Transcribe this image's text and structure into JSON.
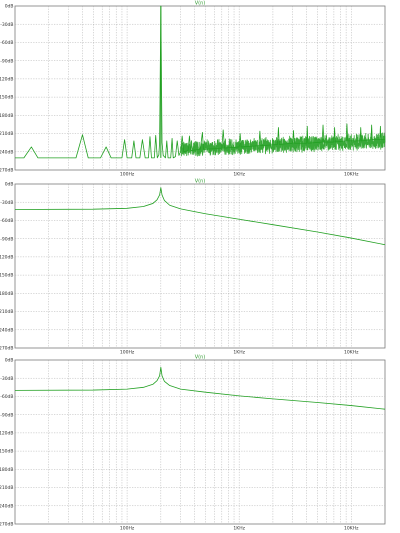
{
  "colors": {
    "trace": "#22a022",
    "grid": "#a8a8a8",
    "frame": "#7a7a7a",
    "title": "#2e9a2e"
  },
  "chart_data": [
    {
      "type": "line",
      "title": "V(n)",
      "xscale": "log",
      "xlim": [
        10,
        20000
      ],
      "grid": true,
      "xticks": [
        {
          "value": 100,
          "label": "100Hz"
        },
        {
          "value": 1000,
          "label": "1KHz"
        },
        {
          "value": 10000,
          "label": "10KHz"
        }
      ],
      "ylim": [
        -270,
        0
      ],
      "yticks": [
        {
          "value": 0,
          "label": "0dB"
        },
        {
          "value": -30,
          "label": "-30dB"
        },
        {
          "value": -60,
          "label": "-60dB"
        },
        {
          "value": -90,
          "label": "-90dB"
        },
        {
          "value": -120,
          "label": "-120dB"
        },
        {
          "value": -150,
          "label": "-150dB"
        },
        {
          "value": -180,
          "label": "-180dB"
        },
        {
          "value": -210,
          "label": "-210dB"
        },
        {
          "value": -240,
          "label": "-240dB"
        },
        {
          "value": -270,
          "label": "-270dB"
        }
      ],
      "series": [
        {
          "kind": "spectrum",
          "fundamental": {
            "x": 200,
            "y": 0
          },
          "noise_floor": {
            "from": [
              300,
              -235
            ],
            "to": [
              20000,
              -222
            ]
          },
          "points": [
            [
              10,
              -250
            ],
            [
              12,
              -250
            ],
            [
              14,
              -232
            ],
            [
              16,
              -250
            ],
            [
              35,
              -250
            ],
            [
              40,
              -212
            ],
            [
              45,
              -250
            ],
            [
              58,
              -250
            ],
            [
              65,
              -232
            ],
            [
              72,
              -250
            ],
            [
              90,
              -250
            ],
            [
              95,
              -220
            ],
            [
              100,
              -250
            ],
            [
              110,
              -250
            ],
            [
              115,
              -222
            ],
            [
              120,
              -250
            ],
            [
              130,
              -250
            ],
            [
              137,
              -220
            ],
            [
              145,
              -250
            ],
            [
              155,
              -250
            ],
            [
              160,
              -215
            ],
            [
              165,
              -250
            ],
            [
              175,
              -250
            ],
            [
              180,
              -213
            ],
            [
              186,
              -250
            ],
            [
              192,
              -245
            ],
            [
              195,
              -225
            ],
            [
              200,
              0
            ],
            [
              205,
              -225
            ],
            [
              210,
              -246
            ],
            [
              220,
              -250
            ],
            [
              226,
              -222
            ],
            [
              232,
              -250
            ],
            [
              245,
              -250
            ],
            [
              252,
              -218
            ],
            [
              258,
              -250
            ],
            [
              270,
              -248
            ],
            [
              280,
              -222
            ],
            [
              290,
              -246
            ],
            [
              300,
              -240
            ],
            [
              310,
              -214
            ],
            [
              320,
              -240
            ],
            [
              350,
              -238
            ],
            [
              360,
              -214
            ],
            [
              370,
              -238
            ],
            [
              450,
              -236
            ],
            [
              470,
              -208
            ],
            [
              480,
              -236
            ],
            [
              700,
              -234
            ],
            [
              720,
              -204
            ],
            [
              740,
              -234
            ],
            [
              1000,
              -232
            ],
            [
              1020,
              -210
            ],
            [
              1040,
              -232
            ],
            [
              1500,
              -230
            ],
            [
              1530,
              -206
            ],
            [
              1560,
              -230
            ],
            [
              2200,
              -228
            ],
            [
              2240,
              -200
            ],
            [
              2280,
              -228
            ],
            [
              3000,
              -226
            ],
            [
              3050,
              -205
            ],
            [
              3100,
              -226
            ],
            [
              4000,
              -226
            ],
            [
              4050,
              -198
            ],
            [
              4100,
              -226
            ],
            [
              5500,
              -224
            ],
            [
              5600,
              -196
            ],
            [
              5700,
              -224
            ],
            [
              7000,
              -224
            ],
            [
              7100,
              -200
            ],
            [
              7200,
              -224
            ],
            [
              9000,
              -222
            ],
            [
              9150,
              -194
            ],
            [
              9300,
              -222
            ],
            [
              12000,
              -222
            ],
            [
              12150,
              -200
            ],
            [
              12300,
              -222
            ],
            [
              15000,
              -220
            ],
            [
              15200,
              -196
            ],
            [
              15400,
              -220
            ],
            [
              18000,
              -220
            ],
            [
              18200,
              -198
            ],
            [
              18400,
              -220
            ],
            [
              20000,
              -220
            ]
          ]
        }
      ]
    },
    {
      "type": "line",
      "title": "V(n)",
      "xscale": "log",
      "xlim": [
        10,
        20000
      ],
      "grid": true,
      "xticks": [
        {
          "value": 100,
          "label": "100Hz"
        },
        {
          "value": 1000,
          "label": "1KHz"
        },
        {
          "value": 10000,
          "label": "10KHz"
        }
      ],
      "ylim": [
        -270,
        0
      ],
      "yticks": [
        {
          "value": 0,
          "label": "0dB"
        },
        {
          "value": -30,
          "label": "-30dB"
        },
        {
          "value": -60,
          "label": "-60dB"
        },
        {
          "value": -90,
          "label": "-90dB"
        },
        {
          "value": -120,
          "label": "-120dB"
        },
        {
          "value": -150,
          "label": "-150dB"
        },
        {
          "value": -180,
          "label": "-180dB"
        },
        {
          "value": -210,
          "label": "-210dB"
        },
        {
          "value": -240,
          "label": "-240dB"
        },
        {
          "value": -270,
          "label": "-270dB"
        }
      ],
      "series": [
        {
          "kind": "resonance",
          "points": [
            [
              10,
              -42
            ],
            [
              50,
              -41.5
            ],
            [
              100,
              -40
            ],
            [
              140,
              -37
            ],
            [
              170,
              -32
            ],
            [
              185,
              -26
            ],
            [
              195,
              -18
            ],
            [
              200,
              -6
            ],
            [
              205,
              -18
            ],
            [
              215,
              -27
            ],
            [
              240,
              -35
            ],
            [
              300,
              -41
            ],
            [
              500,
              -49
            ],
            [
              1000,
              -58
            ],
            [
              2000,
              -67
            ],
            [
              5000,
              -79
            ],
            [
              10000,
              -89
            ],
            [
              20000,
              -100
            ]
          ]
        }
      ]
    },
    {
      "type": "line",
      "title": "V(n)",
      "xscale": "log",
      "xlim": [
        10,
        20000
      ],
      "grid": true,
      "xticks": [
        {
          "value": 100,
          "label": "100Hz"
        },
        {
          "value": 1000,
          "label": "1KHz"
        },
        {
          "value": 10000,
          "label": "10KHz"
        }
      ],
      "ylim": [
        -270,
        0
      ],
      "yticks": [
        {
          "value": 0,
          "label": "0dB"
        },
        {
          "value": -30,
          "label": "-30dB"
        },
        {
          "value": -60,
          "label": "-60dB"
        },
        {
          "value": -90,
          "label": "-90dB"
        },
        {
          "value": -120,
          "label": "-120dB"
        },
        {
          "value": -150,
          "label": "-150dB"
        },
        {
          "value": -180,
          "label": "-180dB"
        },
        {
          "value": -210,
          "label": "-210dB"
        },
        {
          "value": -240,
          "label": "-240dB"
        },
        {
          "value": -270,
          "label": "-270dB"
        }
      ],
      "series": [
        {
          "kind": "resonance",
          "points": [
            [
              10,
              -50
            ],
            [
              50,
              -49.5
            ],
            [
              100,
              -48
            ],
            [
              140,
              -45
            ],
            [
              170,
              -40
            ],
            [
              185,
              -34
            ],
            [
              195,
              -26
            ],
            [
              200,
              -12
            ],
            [
              205,
              -26
            ],
            [
              215,
              -35
            ],
            [
              240,
              -42
            ],
            [
              300,
              -48
            ],
            [
              500,
              -53
            ],
            [
              1000,
              -59
            ],
            [
              2000,
              -64
            ],
            [
              5000,
              -70
            ],
            [
              10000,
              -75
            ],
            [
              20000,
              -81
            ]
          ]
        }
      ]
    }
  ]
}
